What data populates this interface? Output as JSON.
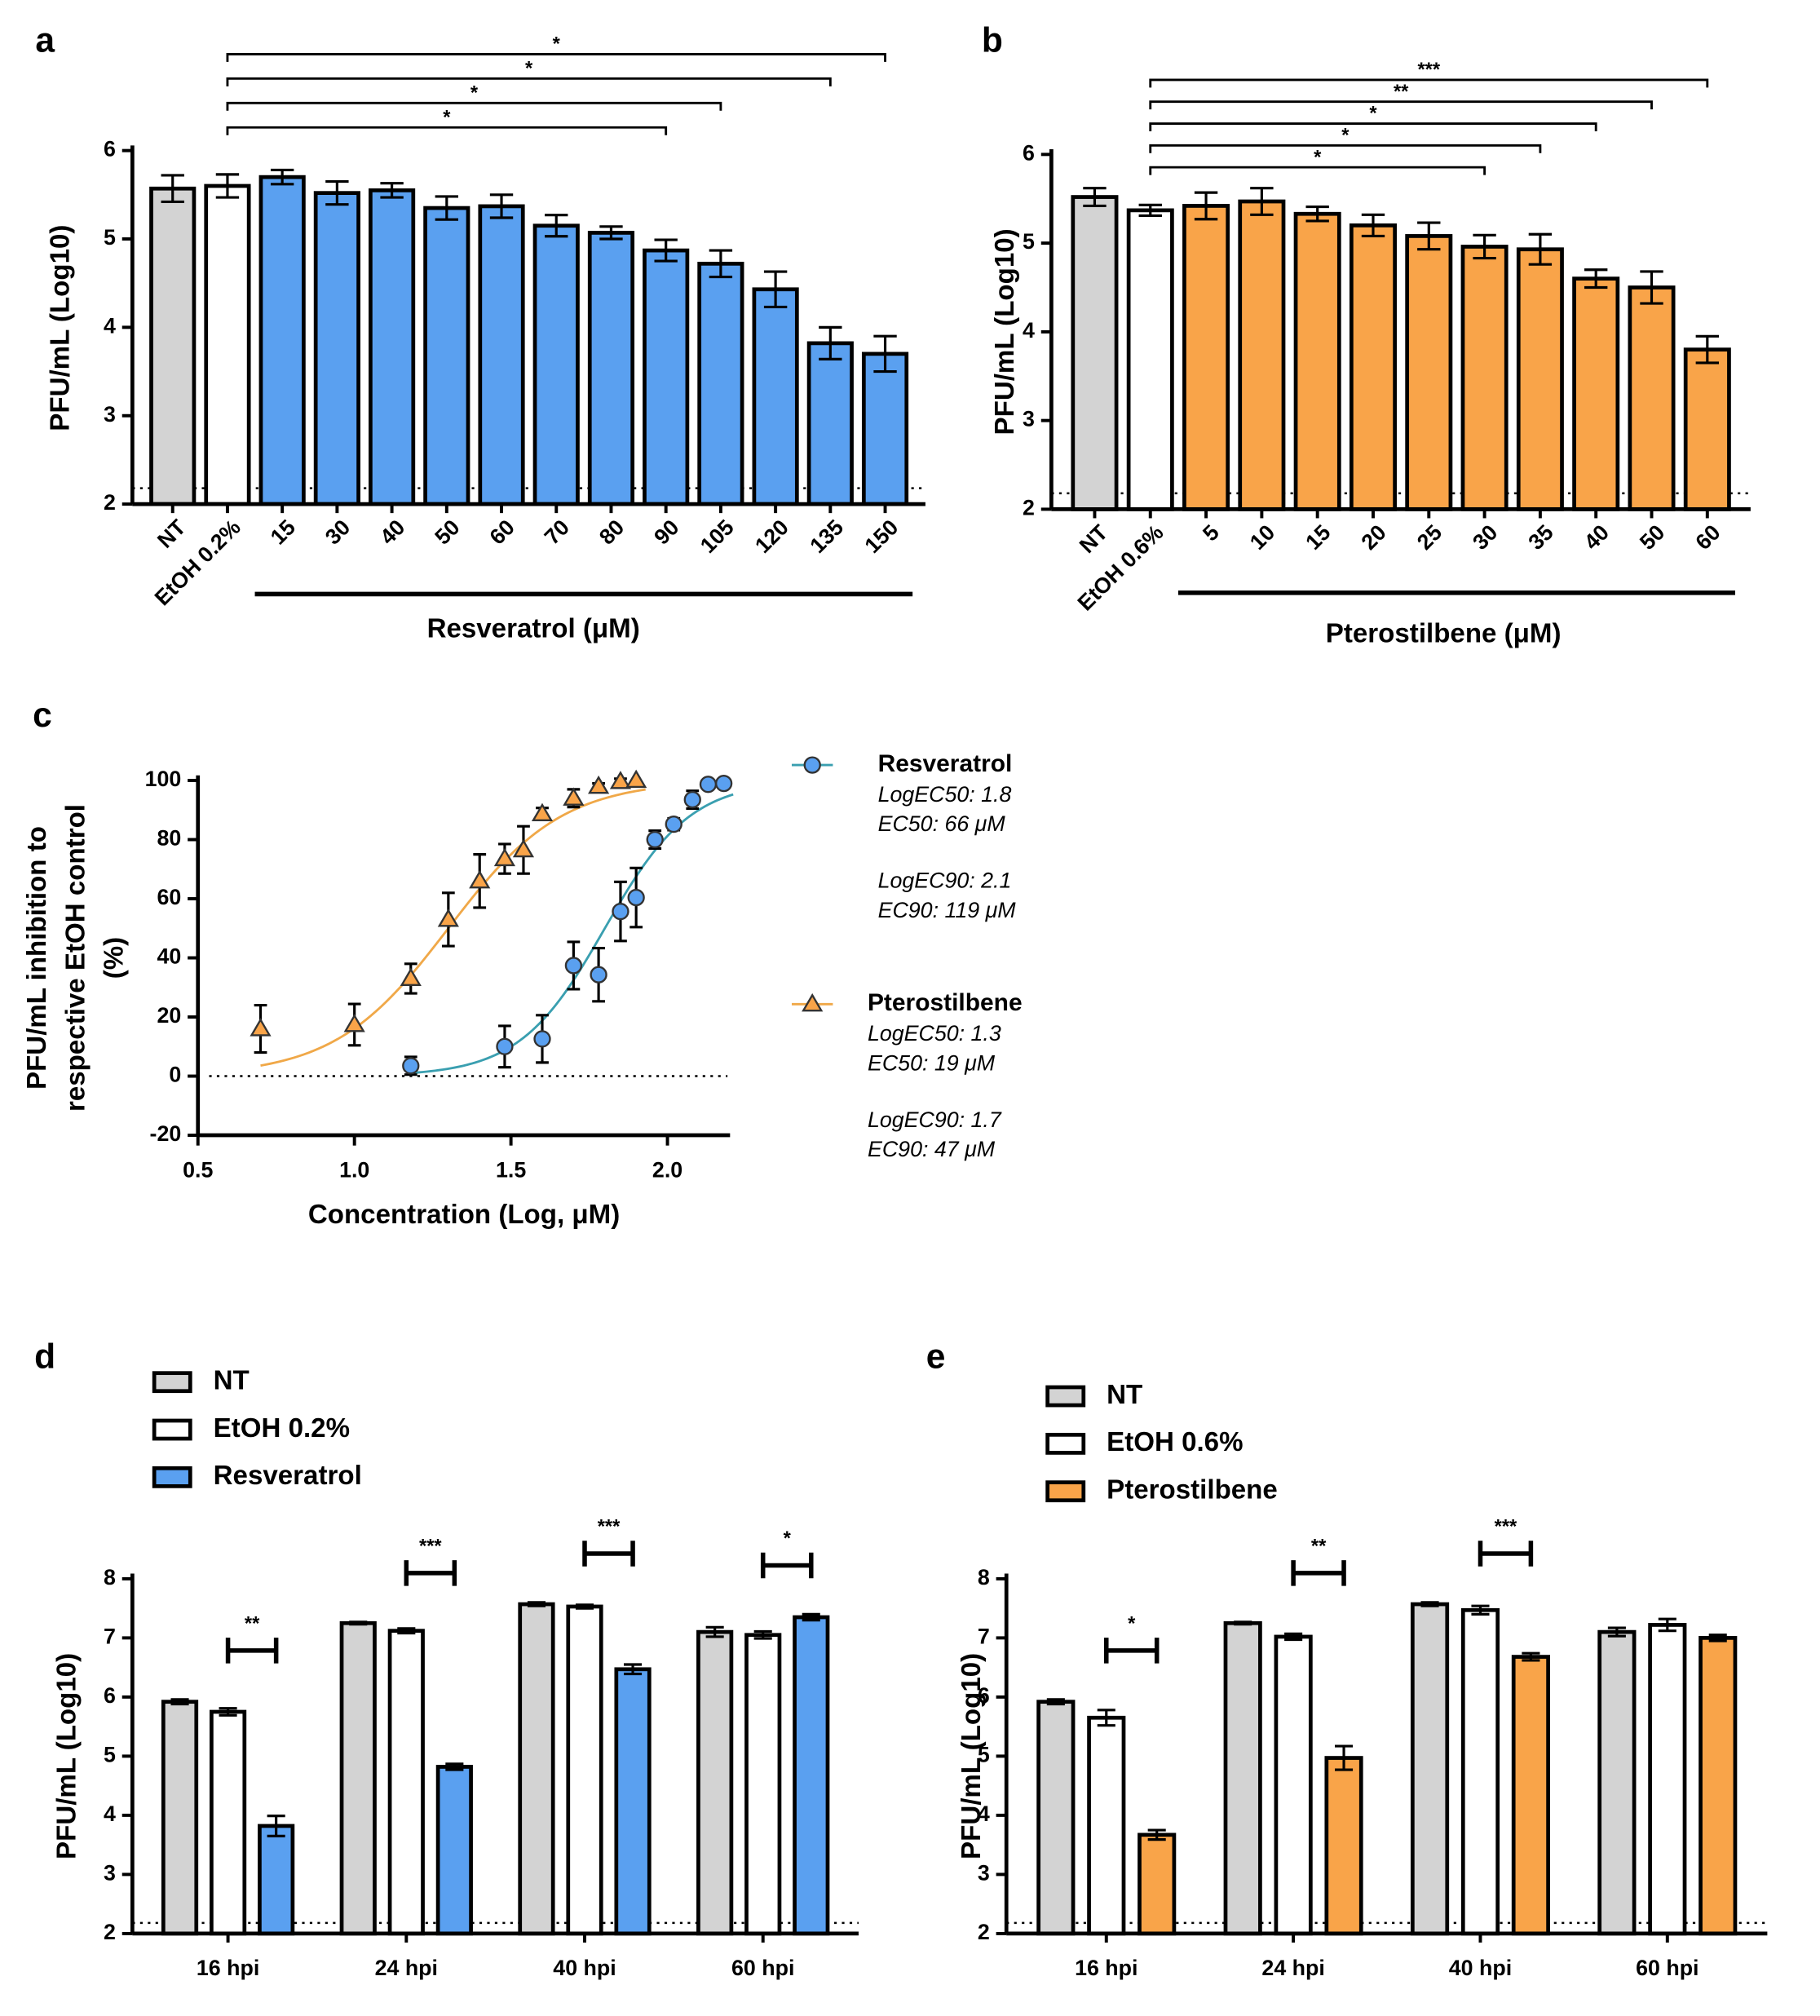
{
  "chart_data": [
    {
      "type": "bar",
      "panel": "a",
      "y_label": "PFU/mL (Log10)",
      "x_label": "Resveratrol (μM)",
      "categories": [
        "NT",
        "EtOH 0.2%",
        "15",
        "30",
        "40",
        "50",
        "60",
        "70",
        "80",
        "90",
        "105",
        "120",
        "135",
        "150"
      ],
      "values": [
        5.57,
        5.6,
        5.7,
        5.52,
        5.55,
        5.35,
        5.37,
        5.15,
        5.07,
        4.87,
        4.72,
        4.43,
        3.82,
        3.7
      ],
      "errors": [
        0.15,
        0.13,
        0.08,
        0.13,
        0.08,
        0.13,
        0.13,
        0.12,
        0.07,
        0.12,
        0.15,
        0.2,
        0.18,
        0.2
      ],
      "colors": [
        "#d3d3d3",
        "#ffffff",
        "#5aa0f0",
        "#5aa0f0",
        "#5aa0f0",
        "#5aa0f0",
        "#5aa0f0",
        "#5aa0f0",
        "#5aa0f0",
        "#5aa0f0",
        "#5aa0f0",
        "#5aa0f0",
        "#5aa0f0",
        "#5aa0f0"
      ],
      "ylim": [
        2,
        6
      ],
      "yticks": [
        2,
        3,
        4,
        5,
        6
      ],
      "lod": 2.18,
      "annotations": [
        {
          "from": "EtOH 0.2%",
          "to": "90",
          "label": "*"
        },
        {
          "from": "EtOH 0.2%",
          "to": "105",
          "label": "*"
        },
        {
          "from": "EtOH 0.2%",
          "to": "135",
          "label": "*"
        },
        {
          "from": "EtOH 0.2%",
          "to": "150",
          "label": "*"
        }
      ]
    },
    {
      "type": "bar",
      "panel": "b",
      "y_label": "PFU/mL (Log10)",
      "x_label": "Pterostilbene (μM)",
      "categories": [
        "NT",
        "EtOH 0.6%",
        "5",
        "10",
        "15",
        "20",
        "25",
        "30",
        "35",
        "40",
        "50",
        "60"
      ],
      "values": [
        5.52,
        5.37,
        5.42,
        5.47,
        5.33,
        5.2,
        5.08,
        4.96,
        4.93,
        4.6,
        4.5,
        3.8
      ],
      "errors": [
        0.1,
        0.06,
        0.15,
        0.15,
        0.08,
        0.12,
        0.15,
        0.13,
        0.17,
        0.1,
        0.18,
        0.15
      ],
      "colors": [
        "#d3d3d3",
        "#ffffff",
        "#f9a449",
        "#f9a449",
        "#f9a449",
        "#f9a449",
        "#f9a449",
        "#f9a449",
        "#f9a449",
        "#f9a449",
        "#f9a449",
        "#f9a449"
      ],
      "ylim": [
        2,
        6
      ],
      "yticks": [
        2,
        3,
        4,
        5,
        6
      ],
      "lod": 2.18,
      "annotations": [
        {
          "from": "EtOH 0.6%",
          "to": "30",
          "label": "*"
        },
        {
          "from": "EtOH 0.6%",
          "to": "35",
          "label": "*"
        },
        {
          "from": "EtOH 0.6%",
          "to": "40",
          "label": "*"
        },
        {
          "from": "EtOH 0.6%",
          "to": "50",
          "label": "**"
        },
        {
          "from": "EtOH 0.6%",
          "to": "60",
          "label": "***"
        }
      ]
    },
    {
      "type": "scatter",
      "panel": "c",
      "y_label": [
        "PFU/mL inhibition to",
        "respective EtOH control",
        "(%)"
      ],
      "x_label": "Concentration (Log, μM)",
      "xlim": [
        0.5,
        2.2
      ],
      "xticks": [
        0.5,
        {
          "value": 1,
          "label": "1.0"
        },
        1.5,
        {
          "value": 2,
          "label": "2.0"
        }
      ],
      "ylim": [
        -20,
        100
      ],
      "yticks": [
        -20,
        0,
        20,
        40,
        60,
        80,
        100
      ],
      "reference_line": 0,
      "series": [
        {
          "name": "Resveratrol",
          "marker": "circle",
          "color": "#5aa0f0",
          "line_color": "#3a9fb0",
          "x": [
            1.18,
            1.48,
            1.6,
            1.7,
            1.78,
            1.85,
            1.9,
            1.96,
            2.02,
            2.08,
            2.13,
            2.18
          ],
          "values": [
            3.5,
            10,
            12.6,
            37.4,
            34.3,
            55.7,
            60.4,
            80,
            85.2,
            93.5,
            98.7,
            99
          ],
          "errors": [
            3,
            7,
            8,
            8,
            9,
            10,
            10,
            3,
            2,
            3,
            1,
            1
          ],
          "fit": {
            "log_ec50": {
              "value": 1.8,
              "label": "LogEC50: 1.8"
            },
            "ec50": {
              "value": 66,
              "label": "EC50: 66 μM"
            },
            "log_ec90": {
              "value": 2.1,
              "label": "LogEC90: 2.1"
            },
            "ec90": {
              "value": 119,
              "label": "EC90: 119 μM"
            }
          }
        },
        {
          "name": "Pterostilbene",
          "marker": "triangle",
          "color": "#f9a449",
          "line_color": "#f0a848",
          "x": [
            0.7,
            1.0,
            1.18,
            1.3,
            1.4,
            1.48,
            1.54,
            1.6,
            1.7,
            1.78,
            1.85,
            1.9
          ],
          "values": [
            16,
            17.4,
            33,
            53,
            66,
            73.5,
            76.5,
            88.7,
            94,
            98,
            99.6,
            100
          ],
          "errors": [
            8,
            7,
            5,
            9,
            9,
            5,
            8,
            2,
            3,
            1,
            1,
            0
          ],
          "fit": {
            "log_ec50": {
              "value": 1.3,
              "label": "LogEC50: 1.3"
            },
            "ec50": {
              "value": 19,
              "label": "EC50: 19 μM"
            },
            "log_ec90": {
              "value": 1.7,
              "label": "LogEC90: 1.7"
            },
            "ec90": {
              "value": 47,
              "label": "EC90: 47 μM"
            }
          }
        }
      ]
    },
    {
      "type": "grouped_bar",
      "panel": "d",
      "y_label": "PFU/mL (Log10)",
      "categories": [
        "16 hpi",
        "24 hpi",
        "40 hpi",
        "60 hpi"
      ],
      "series": [
        {
          "name": "NT",
          "color": "#d3d3d3",
          "values": [
            5.92,
            7.25,
            7.57,
            7.1
          ],
          "errors": [
            0.04,
            0.02,
            0.03,
            0.08
          ]
        },
        {
          "name": "EtOH 0.2%",
          "color": "#ffffff",
          "values": [
            5.75,
            7.12,
            7.53,
            7.05
          ],
          "errors": [
            0.06,
            0.04,
            0.03,
            0.06
          ]
        },
        {
          "name": "Resveratrol",
          "color": "#5aa0f0",
          "values": [
            3.82,
            4.82,
            6.47,
            7.35
          ],
          "errors": [
            0.17,
            0.05,
            0.08,
            0.05
          ]
        }
      ],
      "ylim": [
        2,
        8
      ],
      "yticks": [
        2,
        3,
        4,
        5,
        6,
        7,
        8
      ],
      "lod": 2.18,
      "annotations": [
        {
          "category": "16 hpi",
          "label": "**"
        },
        {
          "category": "24 hpi",
          "label": "***"
        },
        {
          "category": "40 hpi",
          "label": "***"
        },
        {
          "category": "60 hpi",
          "label": "*"
        }
      ]
    },
    {
      "type": "grouped_bar",
      "panel": "e",
      "y_label": "PFU/mL (Log10)",
      "categories": [
        "16 hpi",
        "24 hpi",
        "40 hpi",
        "60 hpi"
      ],
      "series": [
        {
          "name": "NT",
          "color": "#d3d3d3",
          "values": [
            5.92,
            7.25,
            7.57,
            7.1
          ],
          "errors": [
            0.04,
            0.02,
            0.03,
            0.07
          ]
        },
        {
          "name": "EtOH 0.6%",
          "color": "#ffffff",
          "values": [
            5.65,
            7.02,
            7.47,
            7.22
          ],
          "errors": [
            0.13,
            0.05,
            0.07,
            0.1
          ]
        },
        {
          "name": "Pterostilbene",
          "color": "#f9a449",
          "values": [
            3.67,
            4.97,
            6.68,
            7.0
          ],
          "errors": [
            0.08,
            0.2,
            0.06,
            0.05
          ]
        }
      ],
      "ylim": [
        2,
        8
      ],
      "yticks": [
        2,
        3,
        4,
        5,
        6,
        7,
        8
      ],
      "lod": 2.18,
      "annotations": [
        {
          "category": "16 hpi",
          "label": "*"
        },
        {
          "category": "24 hpi",
          "label": "**"
        },
        {
          "category": "40 hpi",
          "label": "***"
        }
      ]
    }
  ]
}
